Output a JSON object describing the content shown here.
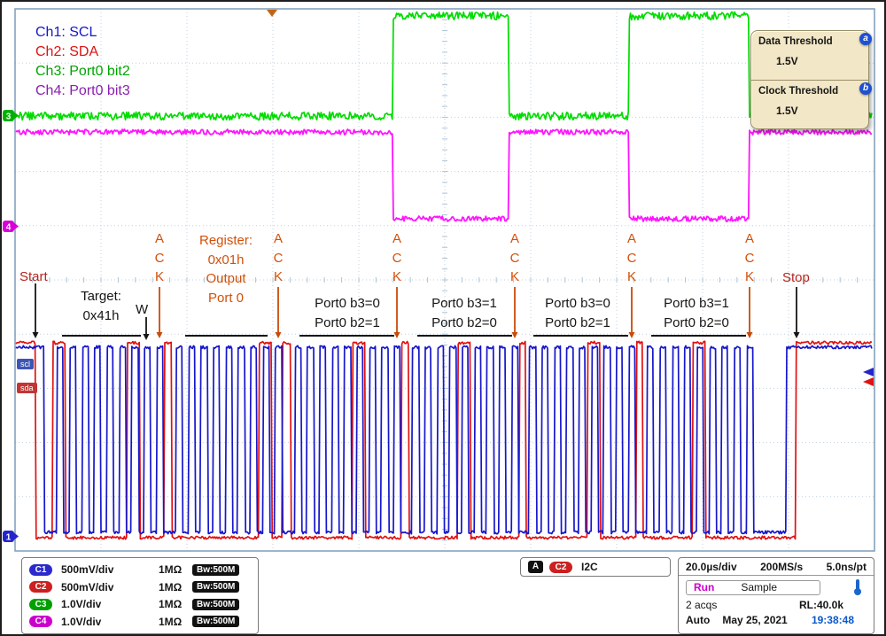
{
  "legend": {
    "ch1": "Ch1: SCL",
    "ch2": "Ch2: SDA",
    "ch3": "Ch3: Port0 bit2",
    "ch4": "Ch4: Port0 bit3"
  },
  "threshold_panel": {
    "data_label": "Data Threshold",
    "data_value": "1.5V",
    "clock_label": "Clock Threshold",
    "clock_value": "1.5V",
    "marker_a": "a",
    "marker_b": "b"
  },
  "annotations": {
    "start": "Start",
    "stop": "Stop",
    "target": "Target:\n0x41h",
    "w_bit": "W",
    "register": "Register:\n0x01h\nOutput\nPort 0",
    "ack": "A\nC\nK",
    "data_byte_labels": [
      "Port0 b3=0\nPort0 b2=1",
      "Port0 b3=1\nPort0 b2=0",
      "Port0 b3=0\nPort0 b2=1",
      "Port0 b3=1\nPort0 b2=0"
    ],
    "scl_tag": "scl",
    "sda_tag": "sda"
  },
  "channel_markers": {
    "ch1": "1",
    "ch3": "3",
    "ch4": "4"
  },
  "vertical_readouts": [
    {
      "badge": "C1",
      "scale": "500mV/div",
      "impedance": "1MΩ",
      "bandwidth": "Bw:500M"
    },
    {
      "badge": "C2",
      "scale": "500mV/div",
      "impedance": "1MΩ",
      "bandwidth": "Bw:500M"
    },
    {
      "badge": "C3",
      "scale": "1.0V/div",
      "impedance": "1MΩ",
      "bandwidth": "Bw:500M"
    },
    {
      "badge": "C4",
      "scale": "1.0V/div",
      "impedance": "1MΩ",
      "bandwidth": "Bw:500M"
    }
  ],
  "trigger_readout": {
    "a_badge": "A",
    "source_badge": "C2",
    "type": "I2C"
  },
  "horizontal_readout": {
    "timebase": "20.0µs/div",
    "sample_rate": "200MS/s",
    "resolution": "5.0ns/pt"
  },
  "acquisition_readout": {
    "state": "Run",
    "mode": "Sample",
    "acquisitions": "2 acqs",
    "record_length": "RL:40.0k",
    "trigger_mode": "Auto",
    "date": "May 25, 2021",
    "time": "19:38:48"
  },
  "chart_data": {
    "type": "line",
    "title": "I2C write transaction (Target 0x41h, Register 0x01h Output Port 0) toggling Port0 bit2/bit3",
    "time_per_div": "20.0µs",
    "divisions_x": 10,
    "divisions_y": 10,
    "grid": "dotted",
    "series": [
      {
        "name": "Ch1: SCL",
        "color": "#1616cc",
        "vertical_scale": "500mV/div",
        "role": "i2c-clock"
      },
      {
        "name": "Ch2: SDA",
        "color": "#e01212",
        "vertical_scale": "500mV/div",
        "role": "i2c-data"
      },
      {
        "name": "Ch3: Port0 bit2",
        "color": "#00dc00",
        "vertical_scale": "1.0V/div",
        "role": "gpio-output",
        "initial_level": 0,
        "toggle_times_div": [
          4.4,
          5.74,
          7.14,
          8.54
        ]
      },
      {
        "name": "Ch4: Port0 bit3",
        "color": "#ff14ff",
        "vertical_scale": "1.0V/div",
        "role": "gpio-output",
        "initial_level": 1,
        "toggle_times_div": [
          4.4,
          5.74,
          7.14,
          8.54
        ]
      }
    ],
    "i2c_transaction": {
      "start_div": 0.24,
      "stop_div": 9.08,
      "bytes": [
        {
          "name": "target-address+W",
          "label": "Target: 0x41h + W",
          "bits": "10000010",
          "ack": true
        },
        {
          "name": "register",
          "label": "Register: 0x01h Output Port 0",
          "bits": "00000001",
          "ack": true
        },
        {
          "name": "data-1",
          "label": "Port0 b3=0 Port0 b2=1",
          "bits": "00000100",
          "ack": true
        },
        {
          "name": "data-2",
          "label": "Port0 b3=1 Port0 b2=0",
          "bits": "00001000",
          "ack": true
        },
        {
          "name": "data-3",
          "label": "Port0 b3=0 Port0 b2=1",
          "bits": "00000100",
          "ack": true
        },
        {
          "name": "data-4",
          "label": "Port0 b3=1 Port0 b2=0",
          "bits": "00001000",
          "ack": true
        }
      ]
    }
  }
}
